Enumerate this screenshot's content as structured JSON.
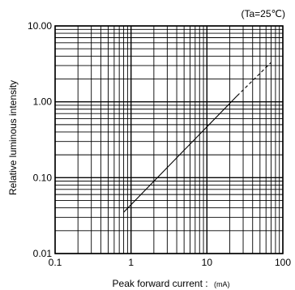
{
  "chart_data": {
    "type": "line",
    "title": "",
    "condition": "(Ta=25℃)",
    "xlabel": "Peak forward current :",
    "xlabel_unit": "(mA)",
    "ylabel": "Relative luminous intensity",
    "x_scale": "log",
    "y_scale": "log",
    "xlim": [
      0.1,
      100
    ],
    "ylim": [
      0.01,
      10
    ],
    "grid": true,
    "x_ticks": [
      {
        "value": 0.1,
        "label": "0.1"
      },
      {
        "value": 1,
        "label": "1"
      },
      {
        "value": 10,
        "label": "10"
      },
      {
        "value": 100,
        "label": "100"
      }
    ],
    "y_ticks": [
      {
        "value": 0.01,
        "label": "0.01"
      },
      {
        "value": 0.1,
        "label": "0.10"
      },
      {
        "value": 1,
        "label": "1.00"
      },
      {
        "value": 10,
        "label": "10.00"
      }
    ],
    "series": [
      {
        "style": "solid",
        "x": [
          0.8,
          25
        ],
        "y": [
          0.035,
          1.2
        ]
      },
      {
        "style": "dashed",
        "x": [
          25,
          70
        ],
        "y": [
          1.2,
          3.3
        ]
      }
    ]
  }
}
